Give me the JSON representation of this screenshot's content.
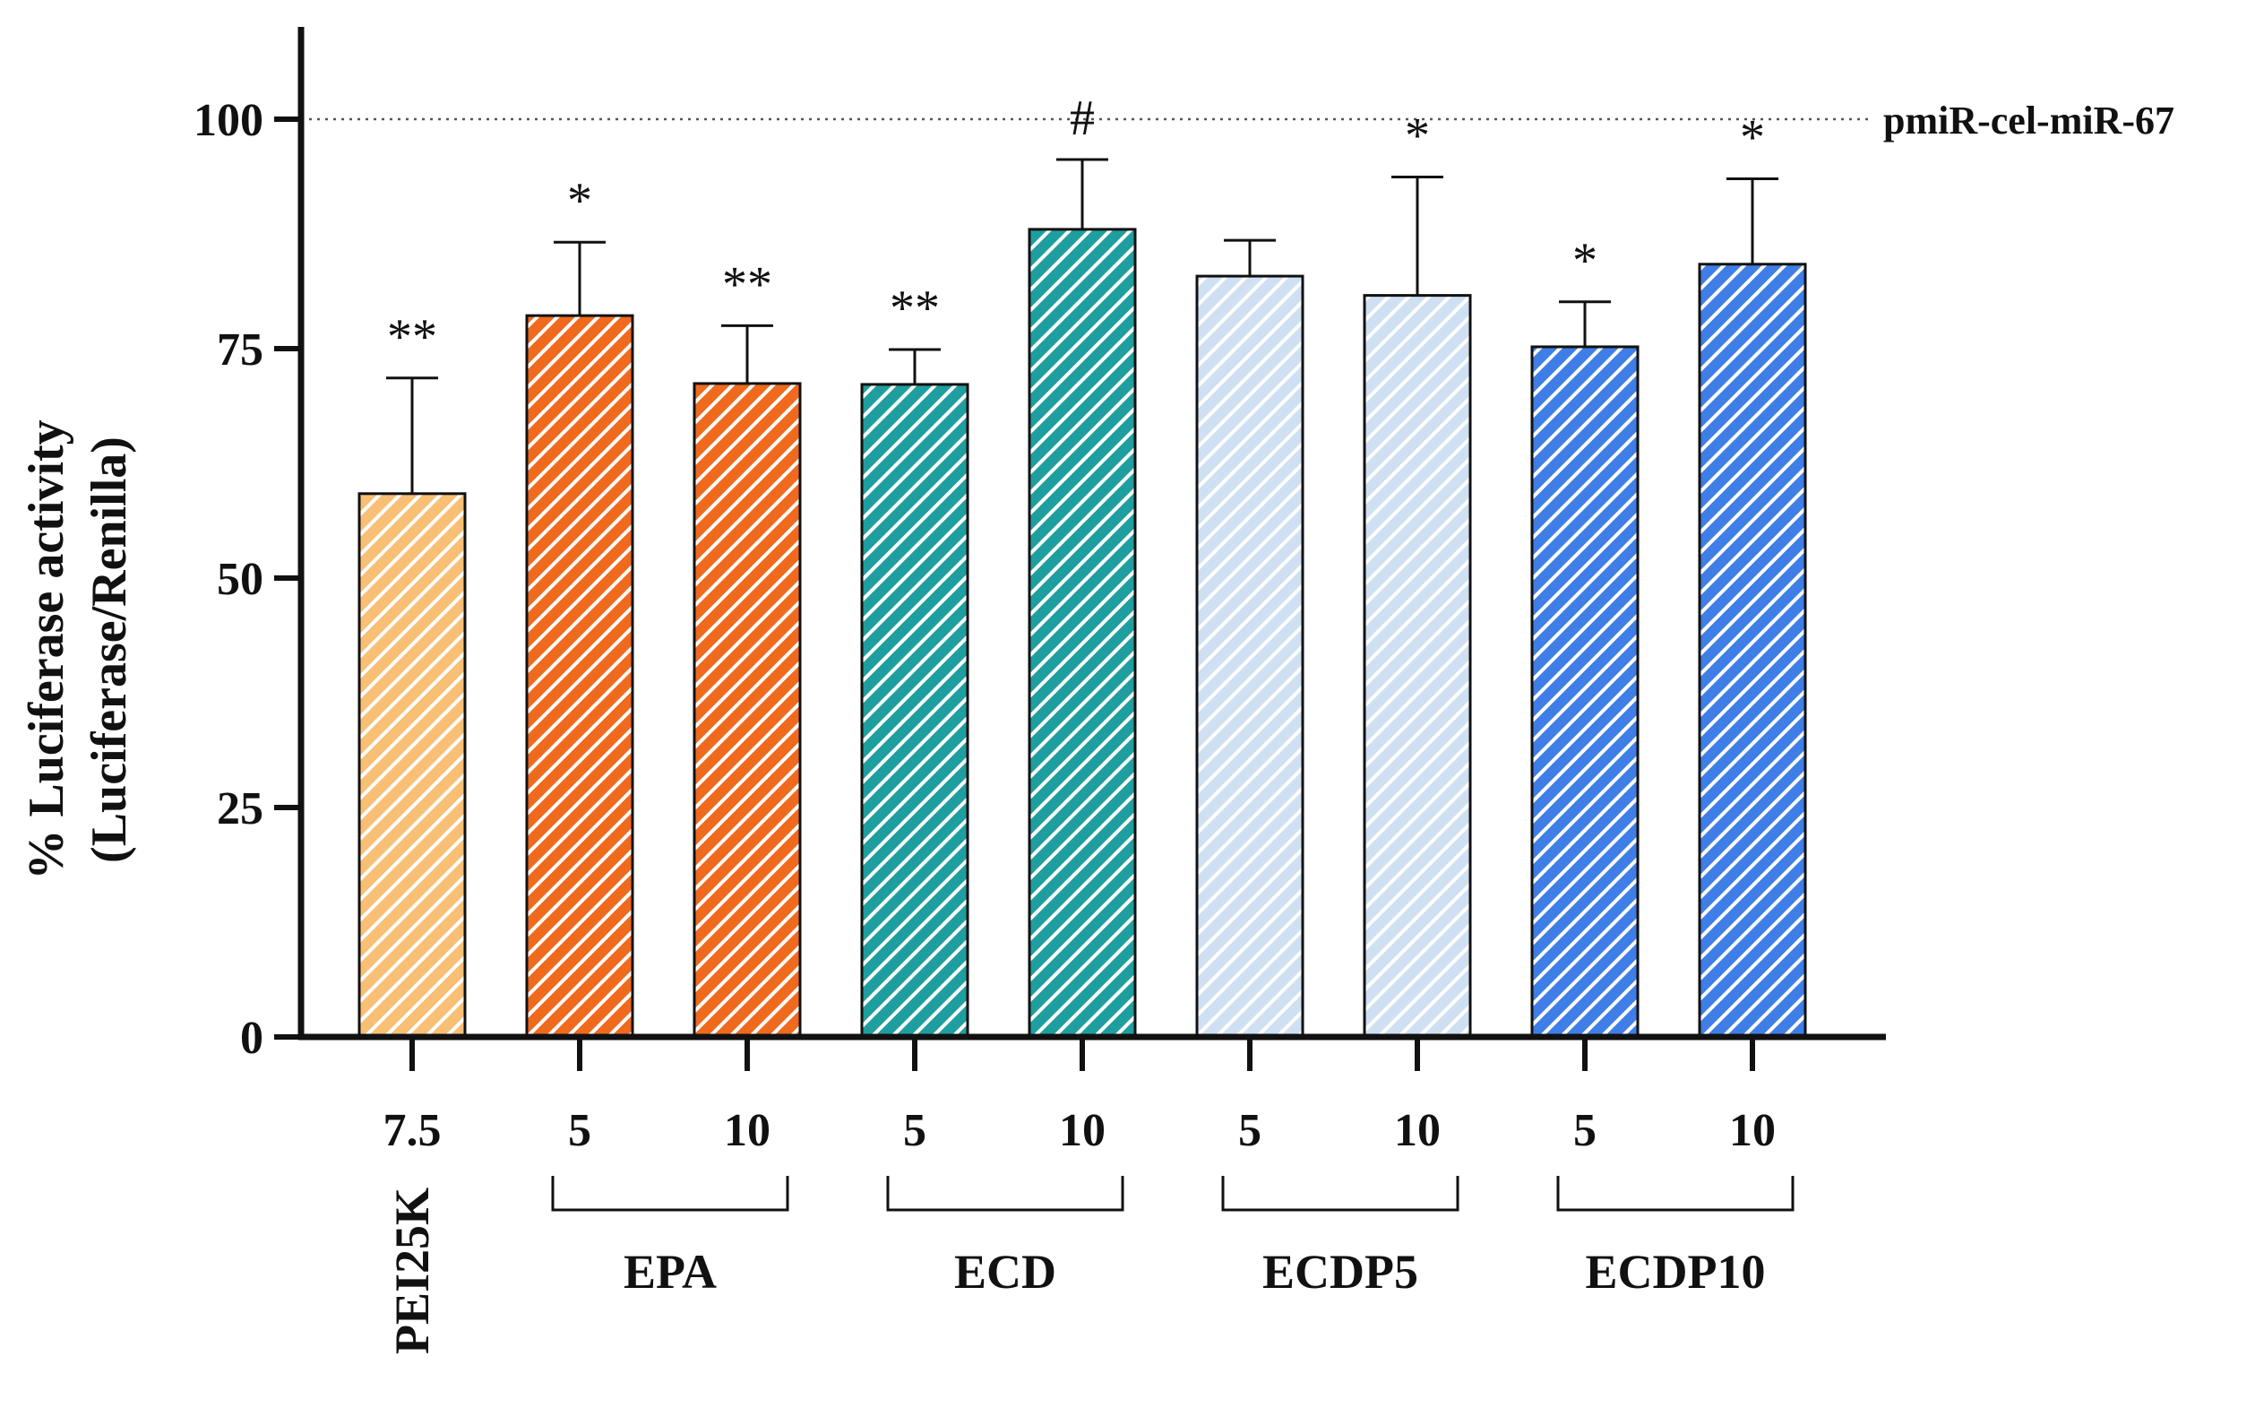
{
  "chart_data": {
    "type": "bar",
    "title": "",
    "ylabel_line1": "% Luciferase activity",
    "ylabel_line2": "(Luciferase/Renilla)",
    "xlabel": "",
    "ylim": [
      0,
      110
    ],
    "yticks": [
      0,
      25,
      50,
      75,
      100
    ],
    "ytick_labels": [
      "0",
      "25",
      "50",
      "75",
      "100"
    ],
    "reference_line": {
      "value": 100,
      "label": "pmiR-cel-miR-67"
    },
    "bars": [
      {
        "category": "7.5",
        "group": "PEI25K",
        "value": 59.2,
        "error": 12.6,
        "significance": "**",
        "color": "#f8bf75"
      },
      {
        "category": "5",
        "group": "EPA",
        "value": 78.6,
        "error": 8.0,
        "significance": "*",
        "color": "#f06a1e"
      },
      {
        "category": "10",
        "group": "EPA",
        "value": 71.2,
        "error": 6.3,
        "significance": "**",
        "color": "#f06a1e"
      },
      {
        "category": "5",
        "group": "ECD",
        "value": 71.1,
        "error": 3.8,
        "significance": "**",
        "color": "#1f9e9f"
      },
      {
        "category": "10",
        "group": "ECD",
        "value": 88.0,
        "error": 7.6,
        "significance": "#",
        "color": "#1f9e9f"
      },
      {
        "category": "5",
        "group": "ECDP5",
        "value": 82.9,
        "error": 3.9,
        "significance": "",
        "color": "#cfe0f3"
      },
      {
        "category": "10",
        "group": "ECDP5",
        "value": 80.8,
        "error": 12.9,
        "significance": "*",
        "color": "#cfe0f3"
      },
      {
        "category": "5",
        "group": "ECDP10",
        "value": 75.2,
        "error": 4.9,
        "significance": "*",
        "color": "#3f7ee6"
      },
      {
        "category": "10",
        "group": "ECDP10",
        "value": 84.2,
        "error": 9.3,
        "significance": "*",
        "color": "#3f7ee6"
      }
    ],
    "groups": [
      {
        "label": "PEI25K",
        "bars": [
          0
        ]
      },
      {
        "label": "EPA",
        "bars": [
          1,
          2
        ]
      },
      {
        "label": "ECD",
        "bars": [
          3,
          4
        ]
      },
      {
        "label": "ECDP5",
        "bars": [
          5,
          6
        ]
      },
      {
        "label": "ECDP10",
        "bars": [
          7,
          8
        ]
      }
    ]
  }
}
